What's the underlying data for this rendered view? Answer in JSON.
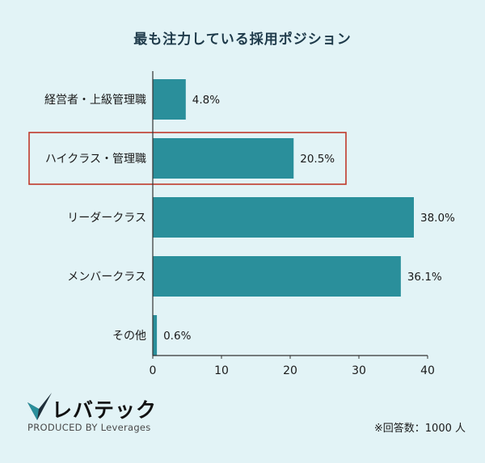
{
  "chart_data": {
    "type": "bar",
    "orientation": "horizontal",
    "title": "最も注力している採用ポジション",
    "categories": [
      "経営者・上級管理職",
      "ハイクラス・管理職",
      "リーダークラス",
      "メンバークラス",
      "その他"
    ],
    "values": [
      4.8,
      20.5,
      38.0,
      36.1,
      0.6
    ],
    "value_labels": [
      "4.8%",
      "20.5%",
      "38.0%",
      "36.1%",
      "0.6%"
    ],
    "highlighted_category": "ハイクラス・管理職",
    "xlim": [
      0,
      40
    ],
    "xticks": [
      0,
      10,
      20,
      30,
      40
    ],
    "xlabel": "",
    "ylabel": "",
    "grid": false,
    "bar_color": "#2a8f9b",
    "highlight_color": "#c0392b"
  },
  "brand": {
    "name": "レバテック",
    "sub": "PRODUCED BY Leverages"
  },
  "footnote": "※回答数：1000 人"
}
